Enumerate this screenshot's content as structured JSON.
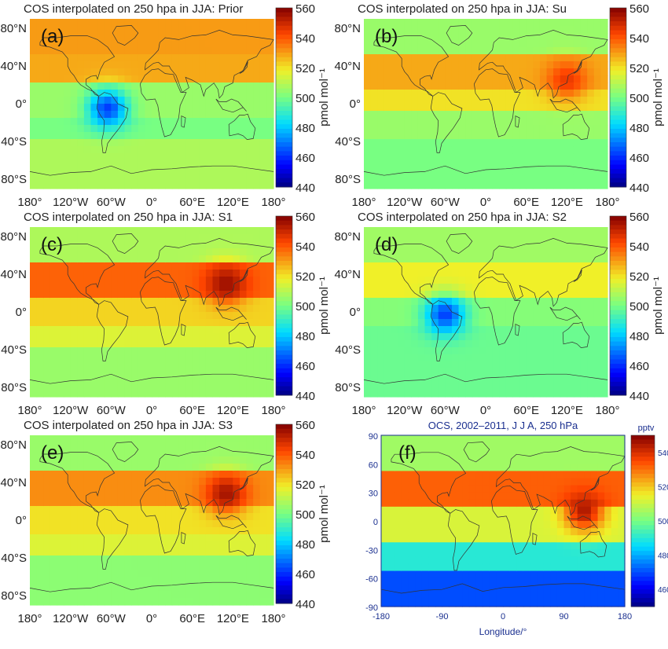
{
  "chart_data": [
    {
      "type": "heatmap",
      "title": "COS interpolated on 250 hpa in JJA: Prior",
      "panel_label": "(a)",
      "xticks": [
        "180°",
        "120°W",
        "60°W",
        "0°",
        "60°E",
        "120°E",
        "180°"
      ],
      "yticks": [
        "80°N",
        "40°N",
        "0°",
        "40°S",
        "80°S"
      ],
      "colorbar": {
        "ticks": [
          "560",
          "540",
          "520",
          "500",
          "480",
          "460",
          "440"
        ],
        "label": "pmol mol⁻¹",
        "range": [
          440,
          560
        ]
      },
      "latitude_bands": [
        {
          "lat": [
            50,
            90
          ],
          "value": 530
        },
        {
          "lat": [
            20,
            50
          ],
          "value": 528
        },
        {
          "lat": [
            -15,
            20
          ],
          "value": 505
        },
        {
          "lat": [
            -40,
            -15
          ],
          "value": 500
        },
        {
          "lat": [
            -90,
            -40
          ],
          "value": 508
        }
      ],
      "features": [
        {
          "lon": -65,
          "lat": -5,
          "value": 462,
          "note": ""
        }
      ]
    },
    {
      "type": "heatmap",
      "title": "COS interpolated on 250 hpa in JJA: Su",
      "panel_label": "(b)",
      "xticks": [
        "180°",
        "120°W",
        "60°W",
        "0°",
        "60°E",
        "120°E",
        "180°"
      ],
      "yticks": [
        "80°N",
        "40°N",
        "0°",
        "40°S",
        "80°S"
      ],
      "colorbar": {
        "ticks": [
          "560",
          "540",
          "520",
          "500",
          "480",
          "460",
          "440"
        ],
        "label": "pmol mol⁻¹",
        "range": [
          440,
          560
        ]
      },
      "latitude_bands": [
        {
          "lat": [
            50,
            90
          ],
          "value": 505
        },
        {
          "lat": [
            15,
            50
          ],
          "value": 528
        },
        {
          "lat": [
            -10,
            15
          ],
          "value": 520
        },
        {
          "lat": [
            -40,
            -10
          ],
          "value": 505
        },
        {
          "lat": [
            -90,
            -40
          ],
          "value": 500
        }
      ],
      "features": [
        {
          "lon": 120,
          "lat": 25,
          "value": 545,
          "note": ""
        }
      ]
    },
    {
      "type": "heatmap",
      "title": "COS interpolated on 250 hpa in JJA: S1",
      "panel_label": "(c)",
      "xticks": [
        "180°",
        "120°W",
        "60°W",
        "0°",
        "60°E",
        "120°E",
        "180°"
      ],
      "yticks": [
        "80°N",
        "40°N",
        "0°",
        "40°S",
        "80°S"
      ],
      "colorbar": {
        "ticks": [
          "560",
          "540",
          "520",
          "500",
          "480",
          "460",
          "440"
        ],
        "label": "pmol mol⁻¹",
        "range": [
          440,
          560
        ]
      },
      "latitude_bands": [
        {
          "lat": [
            50,
            90
          ],
          "value": 508
        },
        {
          "lat": [
            15,
            50
          ],
          "value": 538
        },
        {
          "lat": [
            -15,
            15
          ],
          "value": 522
        },
        {
          "lat": [
            -40,
            -15
          ],
          "value": 515
        },
        {
          "lat": [
            -90,
            -40
          ],
          "value": 505
        }
      ],
      "features": [
        {
          "lon": 110,
          "lat": 30,
          "value": 556,
          "note": ""
        }
      ]
    },
    {
      "type": "heatmap",
      "title": "COS interpolated on 250 hpa in JJA: S2",
      "panel_label": "(d)",
      "xticks": [
        "180°",
        "120°W",
        "60°W",
        "0°",
        "60°E",
        "120°E",
        "180°"
      ],
      "yticks": [
        "80°N",
        "40°N",
        "0°",
        "40°S",
        "80°S"
      ],
      "colorbar": {
        "ticks": [
          "560",
          "540",
          "520",
          "500",
          "480",
          "460",
          "440"
        ],
        "label": "pmol mol⁻¹",
        "range": [
          440,
          560
        ]
      },
      "latitude_bands": [
        {
          "lat": [
            50,
            90
          ],
          "value": 506
        },
        {
          "lat": [
            15,
            50
          ],
          "value": 518
        },
        {
          "lat": [
            -15,
            15
          ],
          "value": 502
        },
        {
          "lat": [
            -40,
            -15
          ],
          "value": 498
        },
        {
          "lat": [
            -90,
            -40
          ],
          "value": 498
        }
      ],
      "features": [
        {
          "lon": -60,
          "lat": -3,
          "value": 462,
          "note": ""
        }
      ]
    },
    {
      "type": "heatmap",
      "title": "COS interpolated on 250 hpa in JJA: S3",
      "panel_label": "(e)",
      "xticks": [
        "180°",
        "120°W",
        "60°W",
        "0°",
        "60°E",
        "120°E",
        "180°"
      ],
      "yticks": [
        "80°N",
        "40°N",
        "0°",
        "40°S",
        "80°S"
      ],
      "colorbar": {
        "ticks": [
          "560",
          "540",
          "520",
          "500",
          "480",
          "460",
          "440"
        ],
        "label": "pmol mol⁻¹",
        "range": [
          440,
          560
        ]
      },
      "latitude_bands": [
        {
          "lat": [
            50,
            90
          ],
          "value": 505
        },
        {
          "lat": [
            15,
            50
          ],
          "value": 532
        },
        {
          "lat": [
            -15,
            15
          ],
          "value": 520
        },
        {
          "lat": [
            -40,
            -15
          ],
          "value": 515
        },
        {
          "lat": [
            -90,
            -40
          ],
          "value": 503
        }
      ],
      "features": [
        {
          "lon": 110,
          "lat": 28,
          "value": 555,
          "note": ""
        }
      ]
    },
    {
      "type": "heatmap",
      "title": "OCS, 2002–2011, J J A, 250 hPa",
      "panel_label": "(f)",
      "xlabel": "Longitude/°",
      "xticks": [
        "-180",
        "-90",
        "0",
        "90",
        "180"
      ],
      "yticks": [
        "90",
        "60",
        "30",
        "0",
        "-30",
        "-60",
        "-90"
      ],
      "colorbar": {
        "ticks": [
          "540",
          "520",
          "500",
          "480",
          "460"
        ],
        "label": "pptv",
        "range": [
          450,
          550
        ]
      },
      "latitude_bands": [
        {
          "lat": [
            55,
            90
          ],
          "value": 505
        },
        {
          "lat": [
            15,
            55
          ],
          "value": 532
        },
        {
          "lat": [
            -20,
            15
          ],
          "value": 512
        },
        {
          "lat": [
            -55,
            -20
          ],
          "value": 490
        },
        {
          "lat": [
            -90,
            -55
          ],
          "value": 470
        }
      ],
      "features": [
        {
          "lon": 120,
          "lat": 10,
          "value": 545,
          "note": ""
        }
      ]
    }
  ]
}
